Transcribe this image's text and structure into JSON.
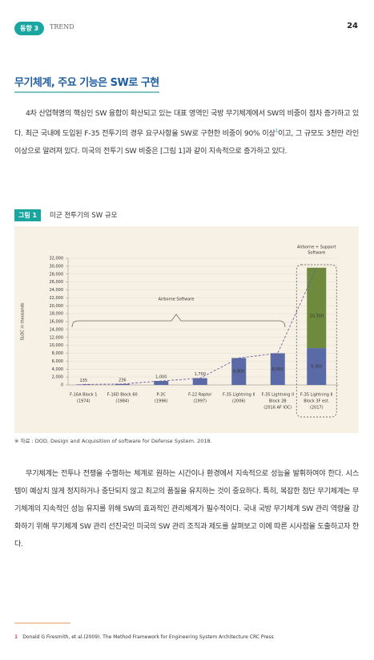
{
  "header": {
    "badge": "동향 3",
    "section": "TREND",
    "page": "24"
  },
  "title": "무기체계, 주요 기능은 SW로 구현",
  "paragraph_1": {
    "before": "4차 산업혁명의 핵심인 SW 융합이 확산되고 있는 대표 영역인 국방 무기체계에서 SW의 비중이 점차 증가하고 있다. 최근 국내에 도입된 F-35 전투기의 경우 요구사항을 SW로 구현한 비중이 90% 이상",
    "note": "1",
    "after": "이고, 그 규모도 3천만 라인 이상으로 알려져 있다. 미국의 전투기 SW 비중은 [그림 1]과 같이 지속적으로 증가하고 있다."
  },
  "figure": {
    "label": "그림 1",
    "caption": "미군 전투기의 SW 규모",
    "chart": {
      "type": "bar",
      "stacked": true,
      "ylabel": "SLOC in thousands",
      "categories": [
        [
          "F-16A Block 1",
          "(1974)"
        ],
        [
          "F-16D Block 60",
          "(1984)"
        ],
        [
          "P-3C",
          "(1996)"
        ],
        [
          "F-22 Raptor",
          "(1997)"
        ],
        [
          "F-35 Lightning II",
          "(2006)"
        ],
        [
          "F-35 Lightning II",
          "Block 2B",
          "(2016 AF IOC)"
        ],
        [
          "F-35 Lightning II",
          "Block 3F est.",
          "(2017)"
        ]
      ],
      "series": [
        {
          "color": "#5a6aa6",
          "values": [
            135,
            236,
            1000,
            1700,
            6800,
            8000,
            9300
          ],
          "value_labels": [
            "135",
            "236",
            "1,000",
            "1,700",
            "6,800",
            "8,000",
            "9,300"
          ]
        },
        {
          "color": "#6e8b3d",
          "values": [
            null,
            null,
            null,
            null,
            null,
            null,
            20300
          ],
          "value_labels": [
            null,
            null,
            null,
            null,
            null,
            null,
            "20,300"
          ]
        }
      ],
      "annotations": [
        [
          "Airborne Software"
        ],
        [
          "Airborne + Support",
          "Software"
        ]
      ],
      "ylim": [
        0,
        32000
      ],
      "yticks": [
        0,
        {
          "value": 2000,
          "label": "2,000"
        },
        {
          "value": 4000,
          "label": "4,000"
        },
        {
          "value": 6000,
          "label": "6,000"
        },
        {
          "value": 8000,
          "label": "8,000"
        },
        {
          "value": 10000,
          "label": "10,000"
        },
        {
          "value": 12000,
          "label": "12,000"
        },
        {
          "value": 14000,
          "label": "14,000"
        },
        {
          "value": 16000,
          "label": "16,000"
        },
        {
          "value": 18000,
          "label": "18,000"
        },
        {
          "value": 20000,
          "label": "20,000"
        },
        {
          "value": 22000,
          "label": "22,000"
        },
        {
          "value": 24000,
          "label": "24,000"
        },
        {
          "value": 26000,
          "label": "26,000"
        },
        {
          "value": 28000,
          "label": "28,000"
        },
        {
          "value": 30000,
          "label": "30,000"
        },
        {
          "value": 32000,
          "label": "32,000"
        }
      ],
      "grid": true
    },
    "source": "※ 자료 : DOD, Design and Acquisition of software for Defense System. 2018."
  },
  "paragraph_2": "무기체계는 전투나 전쟁을 수행하는 체계로 원하는 시간이나 환경에서 지속적으로 성능을 발휘하여야 한다. 시스템이 예상치 않게 정지하거나 중단되지 않고 최고의 품질을 유지하는 것이 중요하다. 특히, 복잡한 첨단 무기체계는 무기체계의 지속적인 성능 유지를 위해 SW의 효과적인 관리체계가 필수적이다. 국내 국방 무기체계 SW 관리 역량을 강화하기 위해 무기체계 SW 관리 선진국인 미국의 SW 관리 조직과 제도를 살펴보고 이에 따른 시사점을 도출하고자 한다.",
  "footnote": {
    "number": "1",
    "text": "Donald G Firesmith, et al.(2009). The Method Framework for Engineering System Architecture CRC Press"
  }
}
